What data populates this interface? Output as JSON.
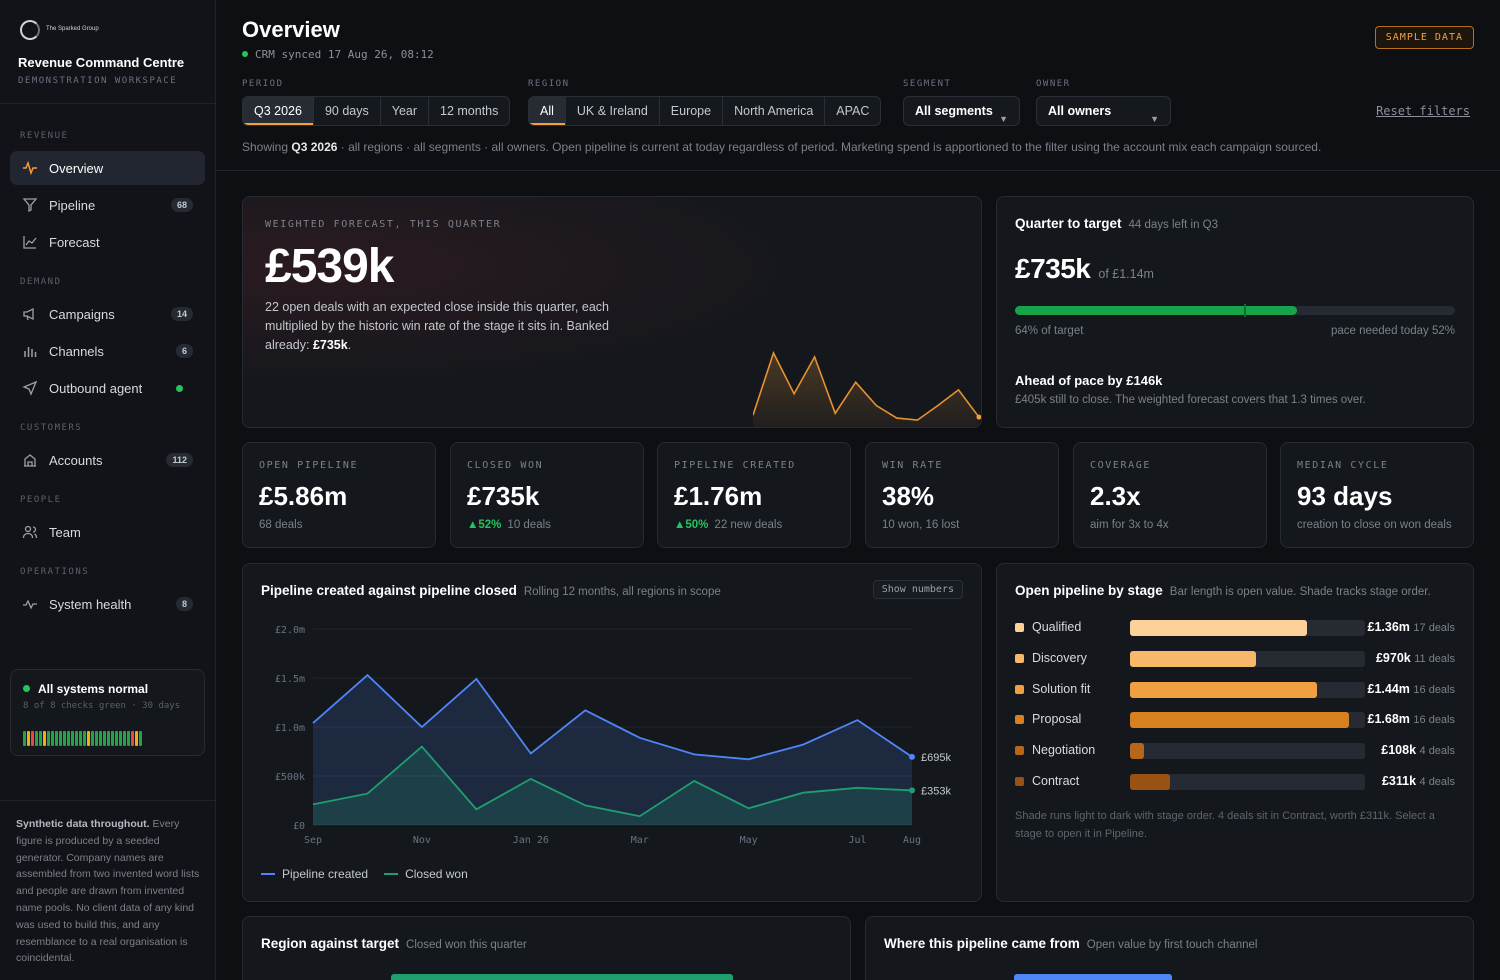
{
  "brand": {
    "logo_text": "The Sparked Group",
    "title": "Revenue Command Centre",
    "subtitle": "DEMONSTRATION WORKSPACE"
  },
  "nav": {
    "sections": {
      "revenue": "REVENUE",
      "demand": "DEMAND",
      "customers": "CUSTOMERS",
      "people": "PEOPLE",
      "operations": "OPERATIONS"
    },
    "items": [
      {
        "label": "Overview",
        "icon": "pulse-icon",
        "active": true
      },
      {
        "label": "Pipeline",
        "icon": "funnel-icon",
        "count": "68"
      },
      {
        "label": "Forecast",
        "icon": "line-chart-icon"
      },
      {
        "label": "Campaigns",
        "icon": "megaphone-icon",
        "count": "14"
      },
      {
        "label": "Channels",
        "icon": "bar-chart-icon",
        "count": "6"
      },
      {
        "label": "Outbound agent",
        "icon": "send-icon",
        "status": "online"
      },
      {
        "label": "Accounts",
        "icon": "building-icon",
        "count": "112"
      },
      {
        "label": "Team",
        "icon": "users-icon"
      },
      {
        "label": "System health",
        "icon": "heartbeat-icon",
        "count": "8"
      }
    ]
  },
  "health": {
    "title": "All systems normal",
    "subtitle": "8 of 8 checks green · 30 days",
    "days": [
      "g",
      "y",
      "r",
      "g",
      "g",
      "y",
      "g",
      "g",
      "g",
      "g",
      "g",
      "g",
      "g",
      "g",
      "g",
      "g",
      "y",
      "g",
      "g",
      "g",
      "g",
      "g",
      "g",
      "g",
      "g",
      "g",
      "g",
      "r",
      "y",
      "g"
    ]
  },
  "disclaimer": {
    "lead": "Synthetic data throughout.",
    "body": " Every figure is produced by a seeded generator. Company names are assembled from two invented word lists and people are drawn from invented name pools. No client data of any kind was used to build this, and any resemblance to a real organisation is coincidental."
  },
  "header": {
    "title": "Overview",
    "sync": "CRM synced 17 Aug 26, 08:12",
    "badge": "SAMPLE DATA",
    "period_label": "PERIOD",
    "period_options": [
      "Q3 2026",
      "90 days",
      "Year",
      "12 months"
    ],
    "region_label": "REGION",
    "region_options": [
      "All",
      "UK & Ireland",
      "Europe",
      "North America",
      "APAC"
    ],
    "segment_label": "SEGMENT",
    "segment_value": "All segments",
    "owner_label": "OWNER",
    "owner_value": "All owners",
    "reset": "Reset filters",
    "showing_pre": "Showing ",
    "showing_period": "Q3 2026",
    "showing_post": " · all regions · all segments · all owners. Open pipeline is current at today regardless of period. Marketing spend is apportioned to the filter using the account mix each campaign sourced."
  },
  "hero": {
    "kicker": "WEIGHTED FORECAST, THIS QUARTER",
    "value": "£539k",
    "desc": "22 open deals with an expected close inside this quarter, each multiplied by the historic win rate of the stage it sits in. Banked already: ",
    "banked": "£735k",
    "desc_end": ".",
    "spark": [
      8,
      72,
      30,
      68,
      10,
      42,
      18,
      5,
      3,
      18,
      34,
      6
    ]
  },
  "target": {
    "title": "Quarter to target",
    "sub": "44 days left in Q3",
    "value": "£735k",
    "of": "of £1.14m",
    "progress": 0.64,
    "pace": 0.52,
    "left_label": "64% of target",
    "right_label": "pace needed today 52%",
    "ahead": "Ahead of pace by £146k",
    "ahead_sub": "£405k still to close. The weighted forecast covers that 1.3 times over."
  },
  "kpis": [
    {
      "kicker": "OPEN PIPELINE",
      "value": "£5.86m",
      "foot": "68 deals"
    },
    {
      "kicker": "CLOSED WON",
      "value": "£735k",
      "delta": "52%",
      "foot": "10 deals"
    },
    {
      "kicker": "PIPELINE CREATED",
      "value": "£1.76m",
      "delta": "50%",
      "foot": "22 new deals"
    },
    {
      "kicker": "WIN RATE",
      "value": "38%",
      "foot": "10 won, 16 lost"
    },
    {
      "kicker": "COVERAGE",
      "value": "2.3x",
      "foot": "aim for 3x to 4x"
    },
    {
      "kicker": "MEDIAN CYCLE",
      "value": "93 days",
      "foot": "creation to close on won deals"
    }
  ],
  "chart_panel": {
    "title": "Pipeline created against pipeline closed",
    "sub": "Rolling 12 months, all regions in scope",
    "button": "Show numbers"
  },
  "chart_data": {
    "type": "area",
    "x": [
      "Sep",
      "Oct",
      "Nov",
      "Dec",
      "Jan 26",
      "Feb",
      "Mar",
      "Apr",
      "May",
      "Jun",
      "Jul",
      "Aug"
    ],
    "xticks": [
      "Sep",
      "Nov",
      "Jan 26",
      "Mar",
      "May",
      "Jul",
      "Aug"
    ],
    "yticks": [
      "£0",
      "£500k",
      "£1.0m",
      "£1.5m",
      "£2.0m"
    ],
    "ylim": [
      0,
      2000
    ],
    "series": [
      {
        "name": "Pipeline created",
        "color": "#4f86f7",
        "values": [
          1040,
          1530,
          1000,
          1490,
          730,
          1170,
          890,
          720,
          670,
          820,
          1070,
          695
        ],
        "end_label": "£695k"
      },
      {
        "name": "Closed won",
        "color": "#1f9e6e",
        "values": [
          210,
          320,
          800,
          160,
          470,
          200,
          90,
          450,
          170,
          330,
          380,
          353
        ],
        "end_label": "£353k"
      }
    ]
  },
  "stages": {
    "title": "Open pipeline by stage",
    "sub": "Bar length is open value. Shade tracks stage order.",
    "rows": [
      {
        "name": "Qualified",
        "amount": "£1.36m",
        "deals": "17 deals",
        "value": 1.36,
        "color": "#fcd29a"
      },
      {
        "name": "Discovery",
        "amount": "£970k",
        "deals": "11 deals",
        "value": 0.97,
        "color": "#f8b86a"
      },
      {
        "name": "Solution fit",
        "amount": "£1.44m",
        "deals": "16 deals",
        "value": 1.44,
        "color": "#f0a040"
      },
      {
        "name": "Proposal",
        "amount": "£1.68m",
        "deals": "16 deals",
        "value": 1.68,
        "color": "#d98020"
      },
      {
        "name": "Negotiation",
        "amount": "£108k",
        "deals": "4 deals",
        "value": 0.108,
        "color": "#b8661a"
      },
      {
        "name": "Contract",
        "amount": "£311k",
        "deals": "4 deals",
        "value": 0.311,
        "color": "#9a5214"
      }
    ],
    "note": "Shade runs light to dark with stage order. 4 deals sit in Contract, worth £311k. Select a stage to open it in Pipeline."
  },
  "region_panel": {
    "title": "Region against target",
    "sub": "Closed won this quarter"
  },
  "source_panel": {
    "title": "Where this pipeline came from",
    "sub": "Open value by first touch channel"
  }
}
